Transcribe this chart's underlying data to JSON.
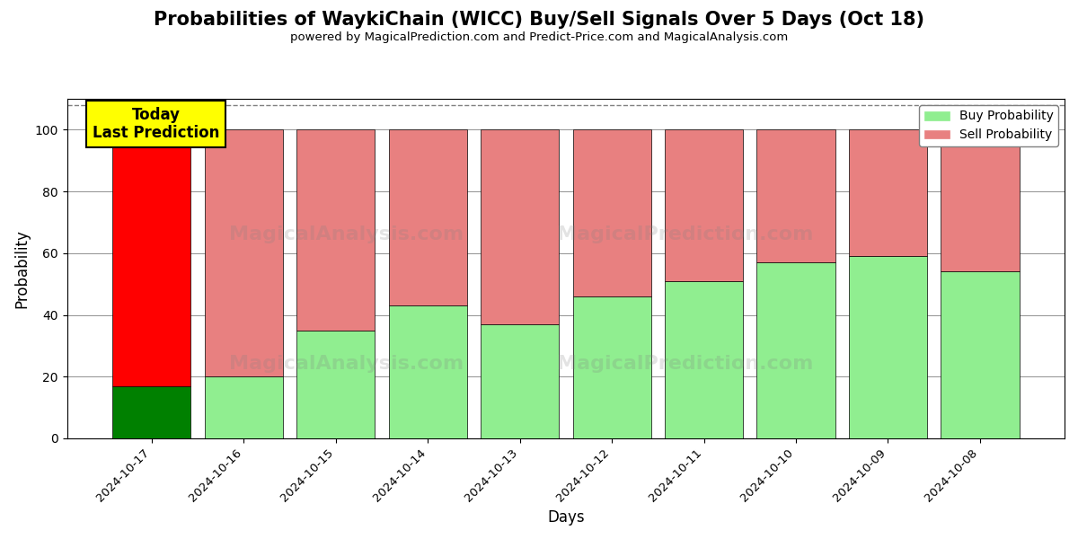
{
  "title": "Probabilities of WaykiChain (WICC) Buy/Sell Signals Over 5 Days (Oct 18)",
  "subtitle": "powered by MagicalPrediction.com and Predict-Price.com and MagicalAnalysis.com",
  "xlabel": "Days",
  "ylabel": "Probability",
  "categories": [
    "2024-10-17",
    "2024-10-16",
    "2024-10-15",
    "2024-10-14",
    "2024-10-13",
    "2024-10-12",
    "2024-10-11",
    "2024-10-10",
    "2024-10-09",
    "2024-10-08"
  ],
  "buy_values": [
    17,
    20,
    35,
    43,
    37,
    46,
    51,
    57,
    59,
    54
  ],
  "sell_values": [
    83,
    80,
    65,
    57,
    63,
    54,
    49,
    43,
    41,
    46
  ],
  "today_buy_color": "#008000",
  "today_sell_color": "#ff0000",
  "buy_color": "#90ee90",
  "sell_color": "#e88080",
  "annotation_text": "Today\nLast Prediction",
  "annotation_bg_color": "#ffff00",
  "legend_buy_label": "Buy Probability",
  "legend_sell_label": "Sell Probability",
  "ylim": [
    0,
    110
  ],
  "yticks": [
    0,
    20,
    40,
    60,
    80,
    100
  ],
  "dashed_line_y": 108,
  "fig_width": 12,
  "fig_height": 6
}
